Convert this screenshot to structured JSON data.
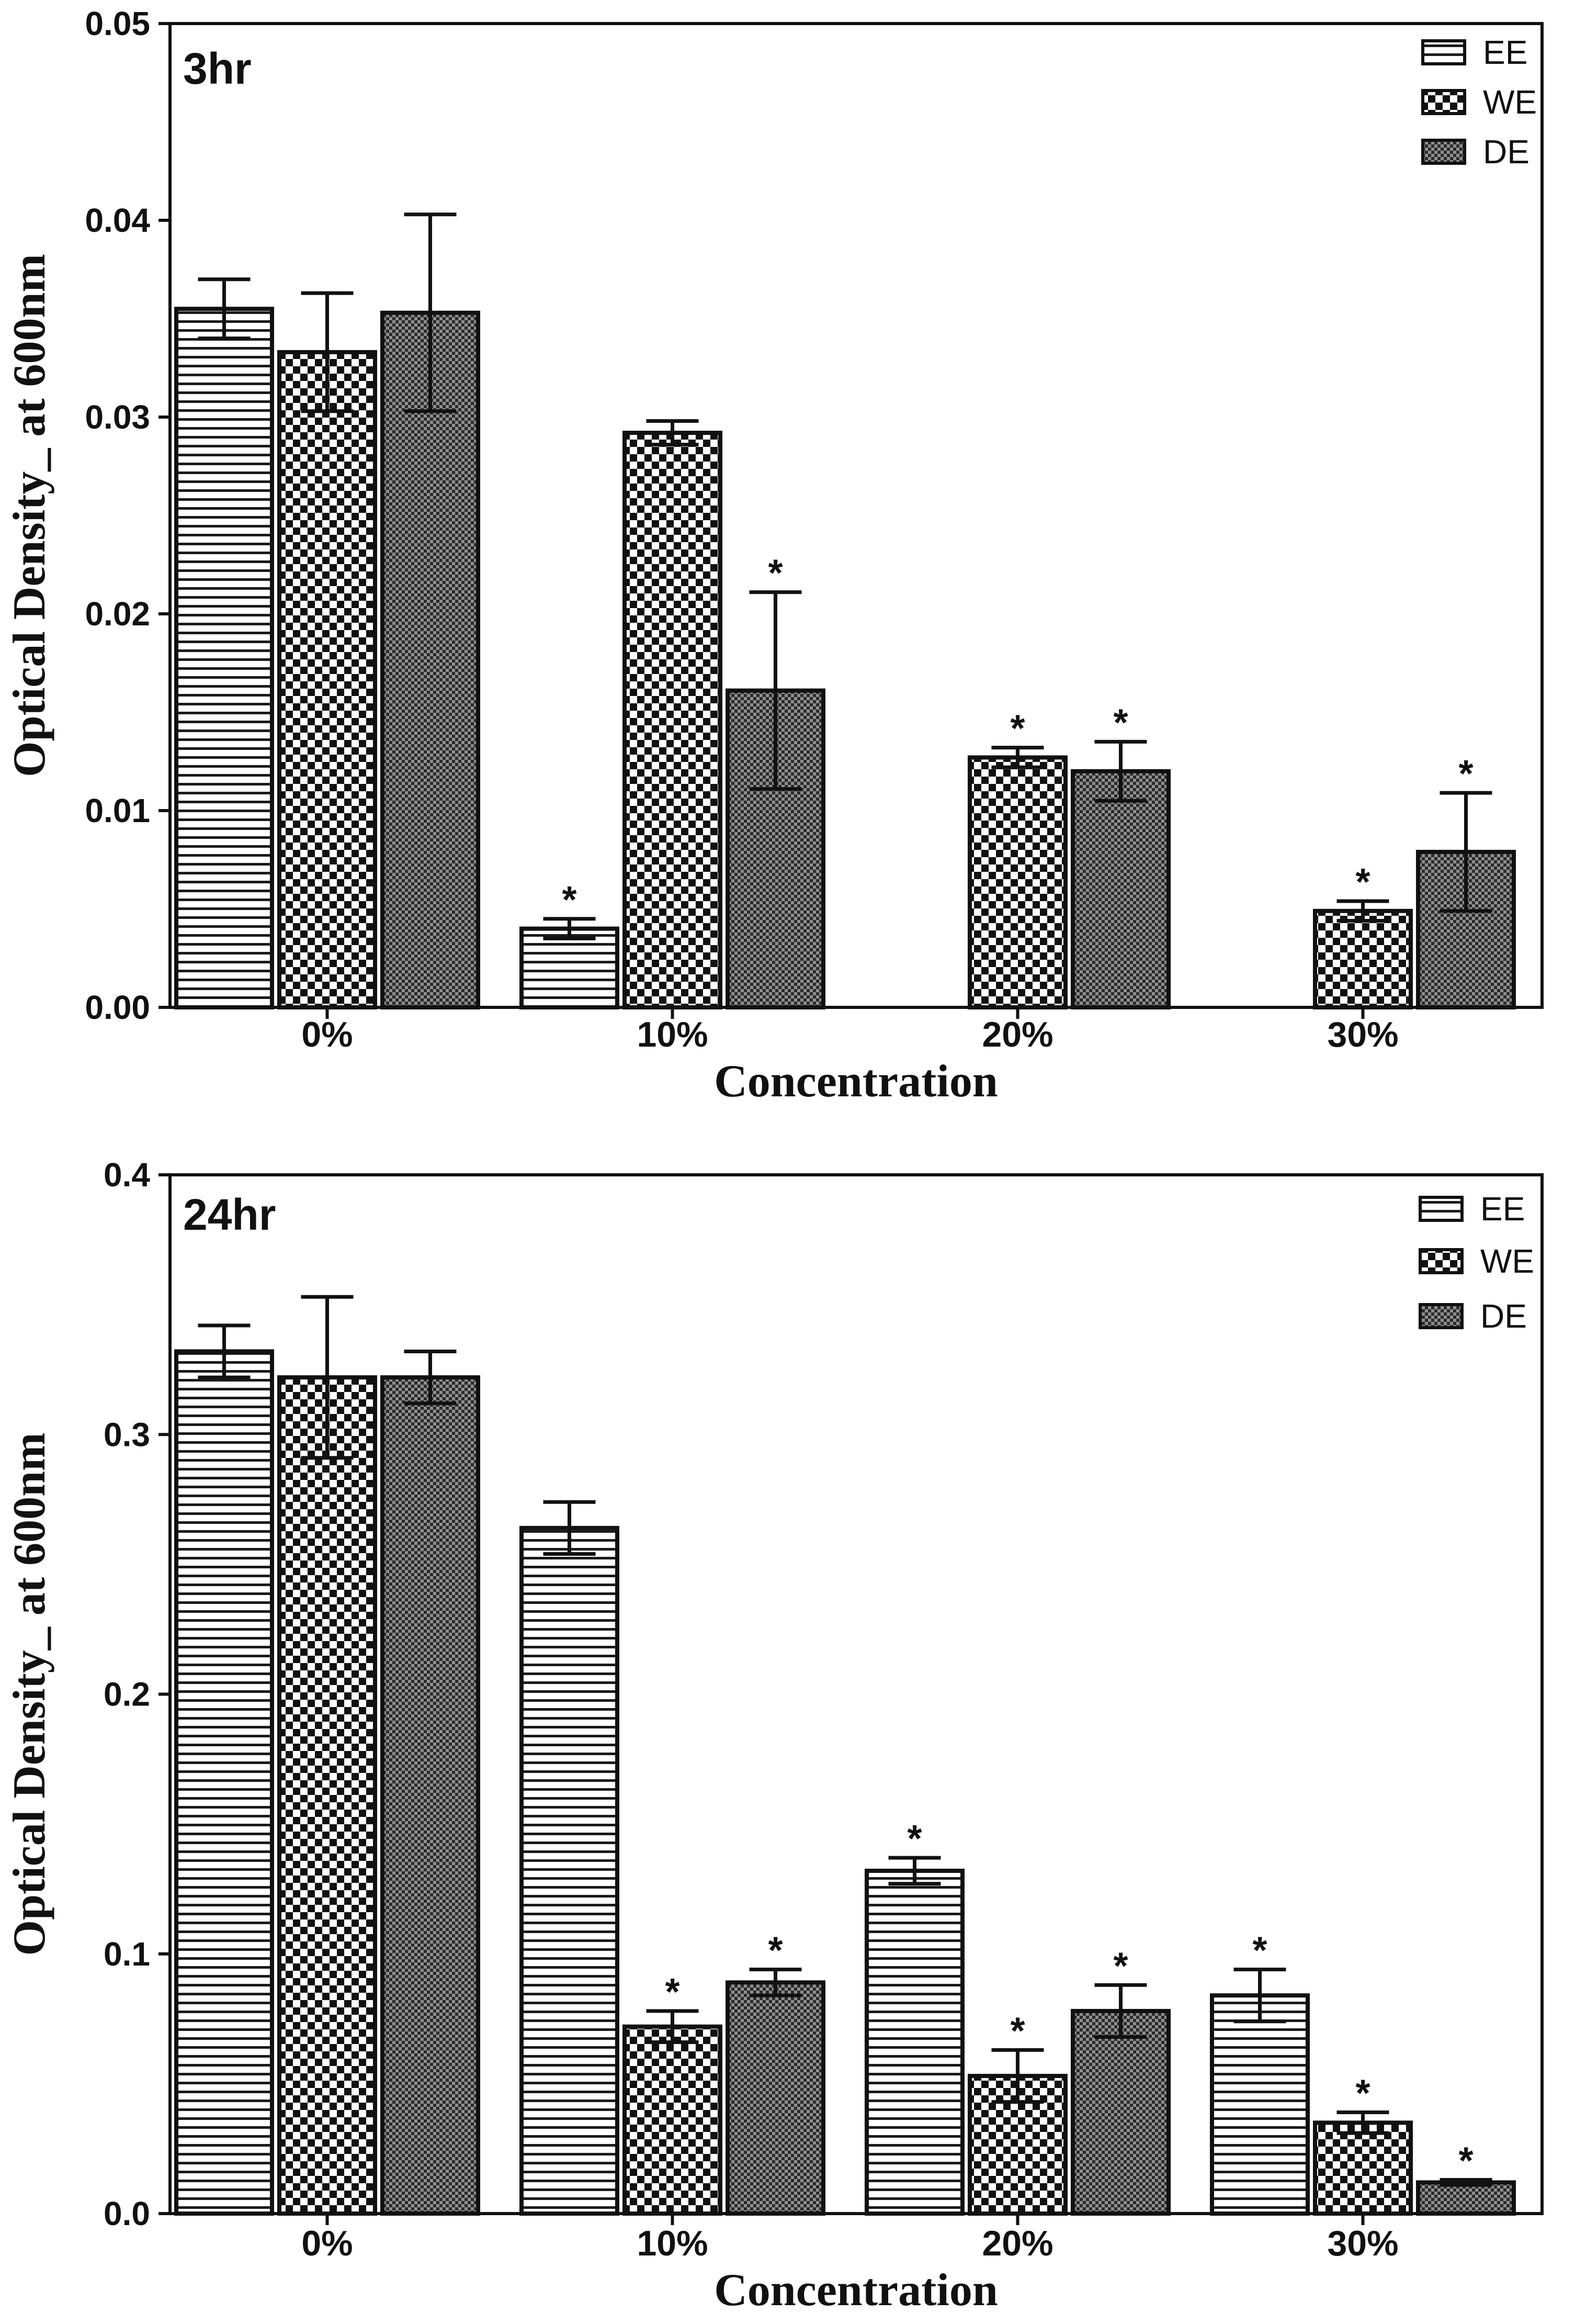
{
  "chart_data": [
    {
      "type": "bar",
      "title": "3hr",
      "xlabel": "Concentration",
      "ylabel": "Optical Density_ at 600nm",
      "categories": [
        "0%",
        "10%",
        "20%",
        "30%"
      ],
      "ylim": [
        0,
        0.05
      ],
      "yticks": [
        "0.00",
        "0.01",
        "0.02",
        "0.03",
        "0.04",
        "0.05"
      ],
      "legend_position": "top-right",
      "series": [
        {
          "name": "EE",
          "values": [
            0.0355,
            0.004,
            null,
            null
          ],
          "errors": [
            0.0015,
            0.0005,
            null,
            null
          ],
          "significant": [
            false,
            true,
            false,
            false
          ]
        },
        {
          "name": "WE",
          "values": [
            0.0333,
            0.0292,
            0.0127,
            0.0049
          ],
          "errors": [
            0.003,
            0.0006,
            0.0005,
            0.0005
          ],
          "significant": [
            false,
            false,
            true,
            true
          ]
        },
        {
          "name": "DE",
          "values": [
            0.0353,
            0.0161,
            0.012,
            0.0079
          ],
          "errors": [
            0.005,
            0.005,
            0.0015,
            0.003
          ],
          "significant": [
            false,
            true,
            true,
            true
          ]
        }
      ]
    },
    {
      "type": "bar",
      "title": "24hr",
      "xlabel": "Concentration",
      "ylabel": "Optical Density_ at 600nm",
      "categories": [
        "0%",
        "10%",
        "20%",
        "30%"
      ],
      "ylim": [
        0,
        0.4
      ],
      "yticks": [
        "0.0",
        "0.1",
        "0.2",
        "0.3",
        "0.4"
      ],
      "legend_position": "top-right",
      "series": [
        {
          "name": "EE",
          "values": [
            0.332,
            0.264,
            0.132,
            0.084
          ],
          "errors": [
            0.01,
            0.01,
            0.005,
            0.01
          ],
          "significant": [
            false,
            false,
            true,
            true
          ]
        },
        {
          "name": "WE",
          "values": [
            0.322,
            0.072,
            0.053,
            0.035
          ],
          "errors": [
            0.031,
            0.006,
            0.01,
            0.004
          ],
          "significant": [
            false,
            true,
            true,
            true
          ]
        },
        {
          "name": "DE",
          "values": [
            0.322,
            0.089,
            0.078,
            0.012
          ],
          "errors": [
            0.01,
            0.005,
            0.01,
            0.001
          ],
          "significant": [
            false,
            true,
            true,
            true
          ]
        }
      ]
    }
  ],
  "legend_icons": [
    "horizontal-stripes-pattern",
    "checker-pattern",
    "fine-dot-pattern"
  ],
  "colors": {
    "ink": "#111111",
    "background": "#ffffff",
    "stripe": "#1a1a1a",
    "dot_fill": "#8f8f8f"
  },
  "significance_marker": "*"
}
